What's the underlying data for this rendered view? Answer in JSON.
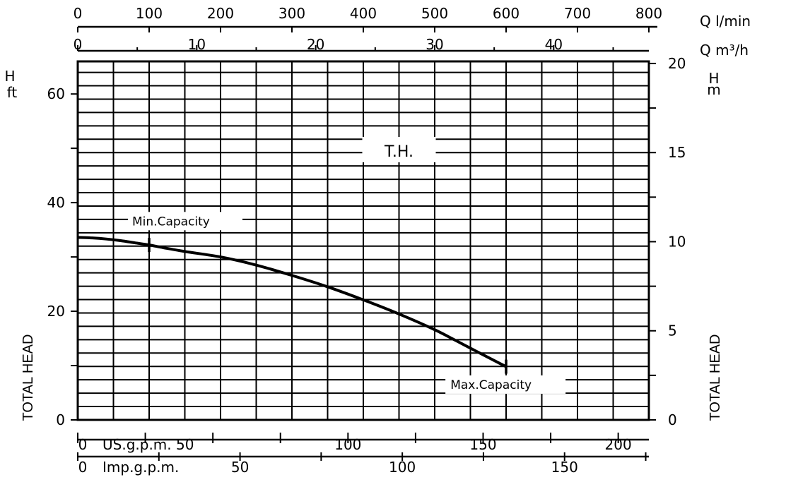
{
  "chart_data": {
    "type": "line",
    "title": "",
    "series": [
      {
        "label": "T.H.",
        "x_lpm": [
          0,
          20,
          40,
          60,
          80,
          100,
          120,
          150,
          200,
          250,
          300,
          350,
          400,
          450,
          500,
          550,
          600
        ],
        "y_ft": [
          33.6,
          33.5,
          33.3,
          33.0,
          32.6,
          32.2,
          31.7,
          31.0,
          30.0,
          28.5,
          26.6,
          24.5,
          22.1,
          19.5,
          16.6,
          13.2,
          9.8
        ]
      }
    ],
    "axes": {
      "top_lpm": {
        "unit": "Q  l/min",
        "min": 0,
        "max": 800,
        "ticks": [
          0,
          100,
          200,
          300,
          400,
          500,
          600,
          700,
          800
        ]
      },
      "top_m3h": {
        "unit": "Q  m³/h",
        "ticks": [
          0,
          10,
          20,
          30,
          40
        ]
      },
      "bottom_us": {
        "unit": "US.g.p.m.",
        "ticks": [
          0,
          50,
          100,
          150,
          200
        ]
      },
      "bottom_imp": {
        "unit": "Imp.g.p.m.",
        "ticks": [
          0,
          50,
          100,
          150
        ]
      },
      "left_ft": {
        "unit_line1": "H",
        "unit_line2": "ft",
        "min": 0,
        "max": 66,
        "ticks": [
          0,
          20,
          40,
          60
        ]
      },
      "right_m": {
        "unit_line1": "H",
        "unit_line2": "m",
        "ticks": [
          0,
          5,
          10,
          15,
          20
        ]
      }
    },
    "side_labels": {
      "left": "TOTAL HEAD",
      "right": "TOTAL HEAD"
    },
    "annotations": {
      "curve_label": "T.H.",
      "min_capacity": {
        "text": "Min.Capacity",
        "x_lpm": 100,
        "y_ft": 32.2
      },
      "max_capacity": {
        "text": "Max.Capacity",
        "x_lpm": 600,
        "y_ft": 9.8
      }
    },
    "grid": true
  }
}
